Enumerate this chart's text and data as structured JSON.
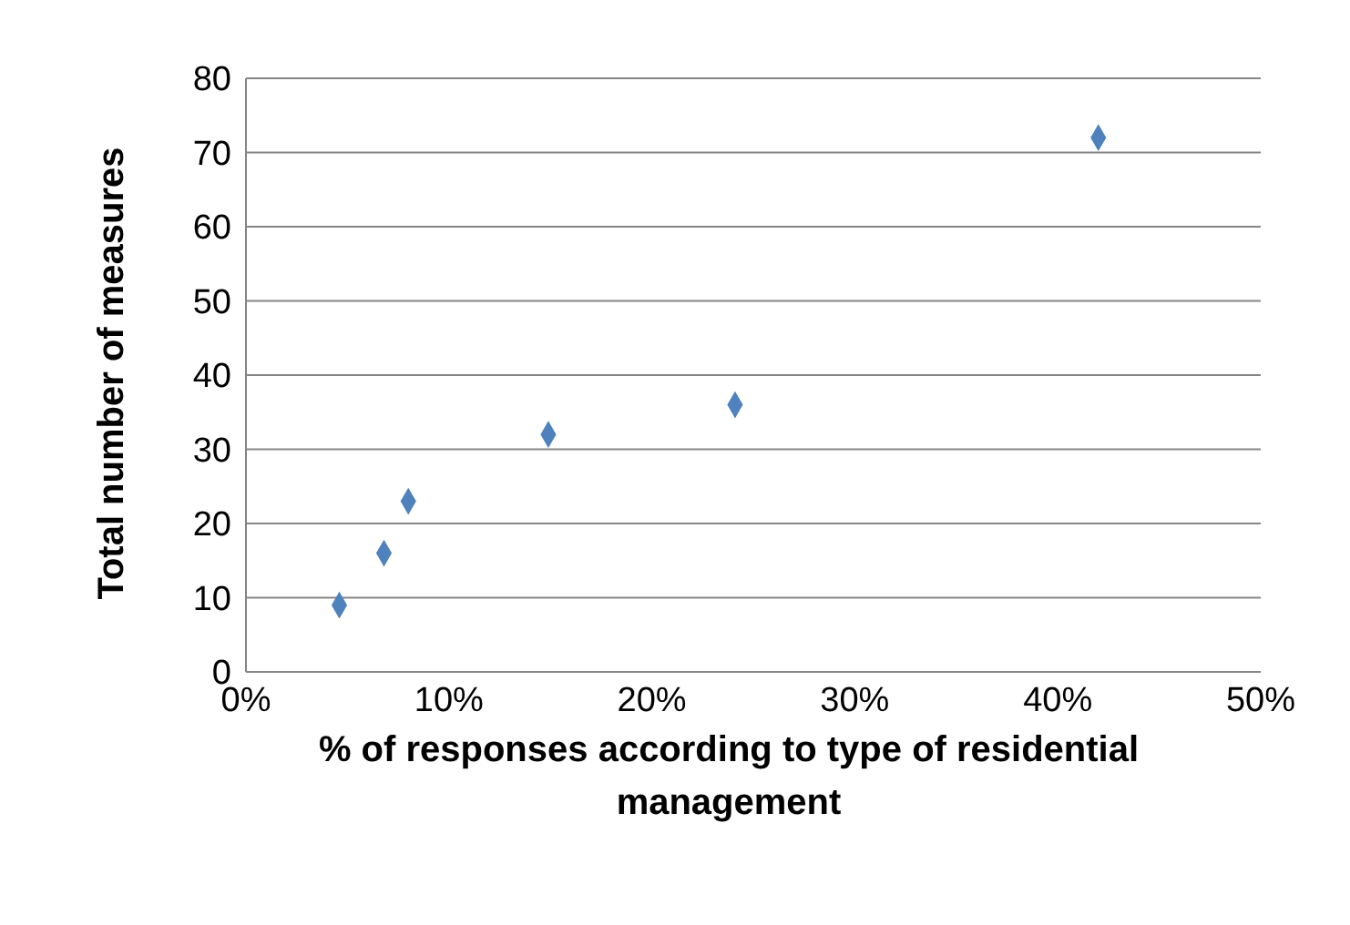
{
  "chart_data": {
    "type": "scatter",
    "xlabel": "% of responses according to type of residential management",
    "ylabel": "Total number of measures",
    "x": [
      4.6,
      6.8,
      8.0,
      14.9,
      24.1,
      42.0
    ],
    "values": [
      9,
      16,
      23,
      32,
      36,
      72
    ],
    "color": "#4f81bd",
    "marker": "diamond",
    "grid": "y",
    "legend": false,
    "xlim": [
      0,
      50
    ],
    "xticks": [
      {
        "value": 0,
        "label": "0%"
      },
      {
        "value": 10,
        "label": "10%"
      },
      {
        "value": 20,
        "label": "20%"
      },
      {
        "value": 30,
        "label": "30%"
      },
      {
        "value": 40,
        "label": "40%"
      },
      {
        "value": 50,
        "label": "50%"
      }
    ],
    "ylim": [
      0,
      80
    ],
    "yticks": [
      0,
      10,
      20,
      30,
      40,
      50,
      60,
      70,
      80
    ]
  }
}
